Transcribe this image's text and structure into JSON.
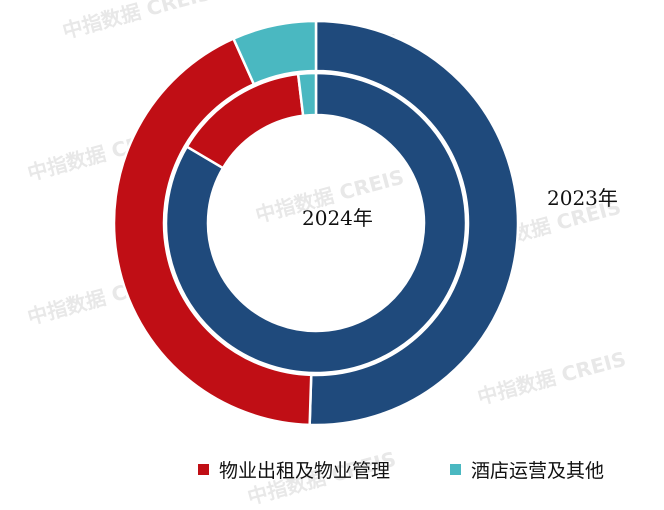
{
  "watermark": "中指数据 CREIS",
  "chart_data": {
    "type": "donut",
    "rings": [
      {
        "name": "2023年",
        "position": "outer",
        "values": [
          50.5,
          42.8,
          6.7
        ]
      },
      {
        "name": "2024年",
        "position": "inner",
        "values": [
          83.5,
          14.6,
          1.9
        ]
      }
    ],
    "series": [
      {
        "name": "",
        "color": "#1f4a7c"
      },
      {
        "name": "物业出租及物业管理",
        "color": "#c00e15"
      },
      {
        "name": "酒店运营及其他",
        "color": "#4ab8c1"
      }
    ],
    "legend_position": "bottom"
  }
}
